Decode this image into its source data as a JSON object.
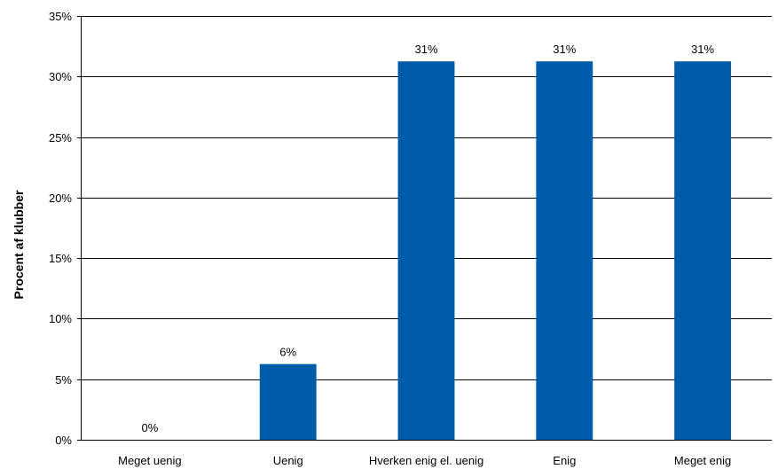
{
  "chart_data": {
    "type": "bar",
    "categories": [
      "Meget uenig",
      "Uenig",
      "Hverken enig el. uenig",
      "Enig",
      "Meget enig"
    ],
    "values": [
      0,
      6.25,
      31.25,
      31.25,
      31.25
    ],
    "data_labels": [
      "0%",
      "6%",
      "31%",
      "31%",
      "31%"
    ],
    "title": "",
    "xlabel": "",
    "ylabel": "Procent af klubber",
    "ylim": [
      0,
      35
    ],
    "yticks": [
      0,
      5,
      10,
      15,
      20,
      25,
      30,
      35
    ],
    "ytick_labels": [
      "0%",
      "5%",
      "10%",
      "15%",
      "20%",
      "25%",
      "30%",
      "35%"
    ],
    "grid": true,
    "bar_color": "#005bab",
    "legend": "none"
  }
}
